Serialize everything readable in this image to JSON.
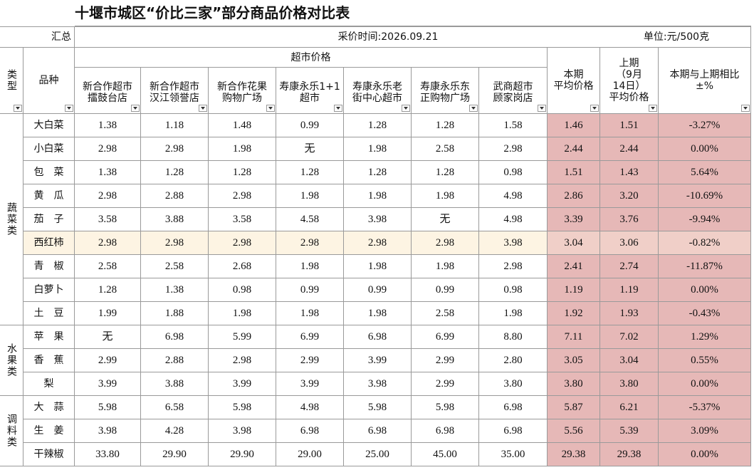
{
  "title": "十堰市城区“价比三家”部分商品价格对比表",
  "summary": {
    "label": "汇总",
    "time": "采价时间:2026.09.21",
    "unit": "单位:元/500克"
  },
  "headers": {
    "type": "类型",
    "variety": "品种",
    "supermarket": "超市价格",
    "stores": [
      "新合作超市\n擂鼓台店",
      "新合作超市\n汉江领誉店",
      "新合作花果\n购物广场",
      "寿康永乐1+1\n超市",
      "寿康永乐老\n街中心超市",
      "寿康永乐东\n正购物广场",
      "武商超市\n顾家岗店"
    ],
    "current": "本期\n平均价格",
    "previous": "上期\n（9月\n14日）\n平均价格",
    "change": "本期与上期相比\n±%"
  },
  "groups": [
    {
      "name": "蔬菜类",
      "rows": [
        [
          "大白菜",
          "1.38",
          "1.18",
          "1.48",
          "0.99",
          "1.28",
          "1.28",
          "1.58",
          "1.46",
          "1.51",
          "-3.27%"
        ],
        [
          "小白菜",
          "2.98",
          "2.98",
          "1.98",
          "无",
          "1.98",
          "2.58",
          "2.98",
          "2.44",
          "2.44",
          "0.00%"
        ],
        [
          "包　菜",
          "1.38",
          "1.28",
          "1.28",
          "1.28",
          "1.28",
          "1.28",
          "0.98",
          "1.51",
          "1.43",
          "5.64%"
        ],
        [
          "黄　瓜",
          "2.98",
          "2.88",
          "2.98",
          "1.98",
          "1.98",
          "1.98",
          "4.98",
          "2.86",
          "3.20",
          "-10.69%"
        ],
        [
          "茄　子",
          "3.58",
          "3.88",
          "3.58",
          "4.58",
          "3.98",
          "无",
          "4.98",
          "3.39",
          "3.76",
          "-9.94%"
        ],
        [
          "西红柿",
          "2.98",
          "2.98",
          "2.98",
          "2.98",
          "2.98",
          "2.98",
          "3.98",
          "3.04",
          "3.06",
          "-0.82%"
        ],
        [
          "青　椒",
          "2.58",
          "2.58",
          "2.68",
          "1.98",
          "1.98",
          "1.98",
          "2.98",
          "2.41",
          "2.74",
          "-11.87%"
        ],
        [
          "白萝卜",
          "1.28",
          "1.38",
          "0.98",
          "0.99",
          "0.99",
          "0.99",
          "0.98",
          "1.19",
          "1.19",
          "0.00%"
        ],
        [
          "土　豆",
          "1.99",
          "1.88",
          "1.98",
          "1.98",
          "1.98",
          "2.58",
          "1.98",
          "1.92",
          "1.93",
          "-0.43%"
        ]
      ]
    },
    {
      "name": "水果类",
      "rows": [
        [
          "苹　果",
          "无",
          "6.98",
          "5.99",
          "6.99",
          "6.98",
          "6.99",
          "8.80",
          "7.11",
          "7.02",
          "1.29%"
        ],
        [
          "香　蕉",
          "2.99",
          "2.88",
          "2.98",
          "2.99",
          "3.99",
          "2.99",
          "2.80",
          "3.05",
          "3.04",
          "0.55%"
        ],
        [
          "梨",
          "3.99",
          "3.88",
          "3.99",
          "3.99",
          "3.98",
          "2.99",
          "3.80",
          "3.80",
          "3.80",
          "0.00%"
        ]
      ]
    },
    {
      "name": "调料类",
      "rows": [
        [
          "大　蒜",
          "5.98",
          "6.58",
          "5.98",
          "4.98",
          "5.98",
          "5.98",
          "6.98",
          "5.87",
          "6.21",
          "-5.37%"
        ],
        [
          "生　姜",
          "3.98",
          "4.28",
          "3.98",
          "6.98",
          "6.98",
          "6.98",
          "6.98",
          "5.56",
          "5.39",
          "3.09%"
        ],
        [
          "干辣椒",
          "33.80",
          "29.90",
          "29.90",
          "29.00",
          "25.00",
          "45.00",
          "35.00",
          "29.38",
          "29.38",
          "0.00%"
        ]
      ]
    }
  ]
}
